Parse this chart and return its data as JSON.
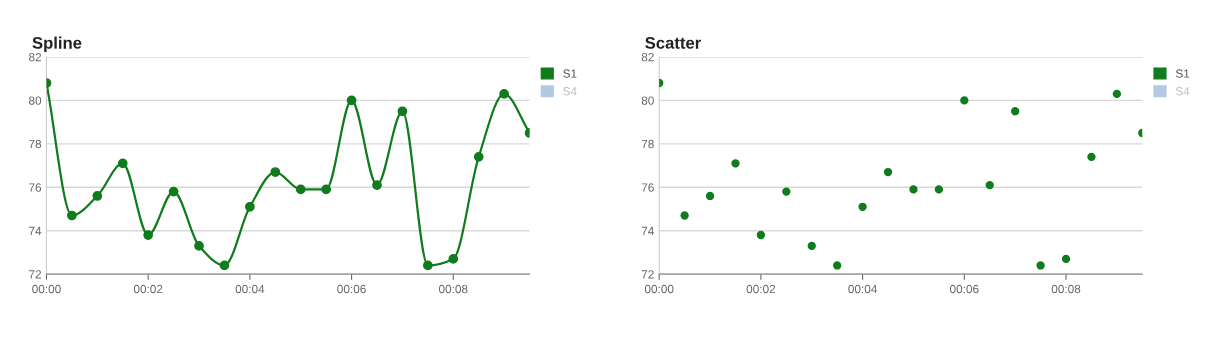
{
  "chart_data": [
    {
      "type": "line",
      "title": "Spline",
      "x": [
        0,
        0.5,
        1,
        1.5,
        2,
        2.5,
        3,
        3.5,
        4,
        4.5,
        5,
        5.5,
        6,
        6.5,
        7,
        7.5,
        8,
        8.5,
        9,
        9.5
      ],
      "series": [
        {
          "name": "S1",
          "color": "#107c1e",
          "values": [
            80.8,
            74.7,
            75.6,
            77.1,
            73.8,
            75.8,
            73.3,
            72.4,
            75.1,
            76.7,
            75.9,
            75.9,
            80.0,
            76.1,
            79.5,
            72.4,
            72.7,
            77.4,
            80.3,
            78.5
          ]
        },
        {
          "name": "S4",
          "color": "#b4c8e4",
          "values": [
            null,
            null,
            null,
            null,
            null,
            null,
            null,
            null,
            null,
            null,
            null,
            null,
            null,
            null,
            null,
            null,
            null,
            null,
            null,
            null
          ]
        }
      ],
      "xlim": [
        0,
        9.5
      ],
      "xticks": [
        {
          "value": 0,
          "label": "00:00"
        },
        {
          "value": 2,
          "label": "00:02"
        },
        {
          "value": 4,
          "label": "00:04"
        },
        {
          "value": 6,
          "label": "00:06"
        },
        {
          "value": 8,
          "label": "00:08"
        }
      ],
      "ylim": [
        72,
        82
      ],
      "yticks": [
        72,
        74,
        76,
        78,
        80,
        82
      ],
      "grid": "y",
      "legend": "right",
      "marker": "circle",
      "line_style": "solid"
    },
    {
      "type": "scatter",
      "title": "Scatter",
      "x": [
        0,
        0.5,
        1,
        1.5,
        2,
        2.5,
        3,
        3.5,
        4,
        4.5,
        5,
        5.5,
        6,
        6.5,
        7,
        7.5,
        8,
        8.5,
        9,
        9.5
      ],
      "series": [
        {
          "name": "S1",
          "color": "#107c1e",
          "values": [
            80.8,
            74.7,
            75.6,
            77.1,
            73.8,
            75.8,
            73.3,
            72.4,
            75.1,
            76.7,
            75.9,
            75.9,
            80.0,
            76.1,
            79.5,
            72.4,
            72.7,
            77.4,
            80.3,
            78.5
          ]
        },
        {
          "name": "S4",
          "color": "#b4c8e4",
          "values": [
            null,
            null,
            null,
            null,
            null,
            null,
            null,
            null,
            null,
            null,
            null,
            null,
            null,
            null,
            null,
            null,
            null,
            null,
            null,
            null
          ]
        }
      ],
      "xlim": [
        0,
        9.5
      ],
      "xticks": [
        {
          "value": 0,
          "label": "00:00"
        },
        {
          "value": 2,
          "label": "00:02"
        },
        {
          "value": 4,
          "label": "00:04"
        },
        {
          "value": 6,
          "label": "00:06"
        },
        {
          "value": 8,
          "label": "00:08"
        }
      ],
      "ylim": [
        72,
        82
      ],
      "yticks": [
        72,
        74,
        76,
        78,
        80,
        82
      ],
      "grid": "y",
      "legend": "right",
      "marker": "circle"
    }
  ]
}
